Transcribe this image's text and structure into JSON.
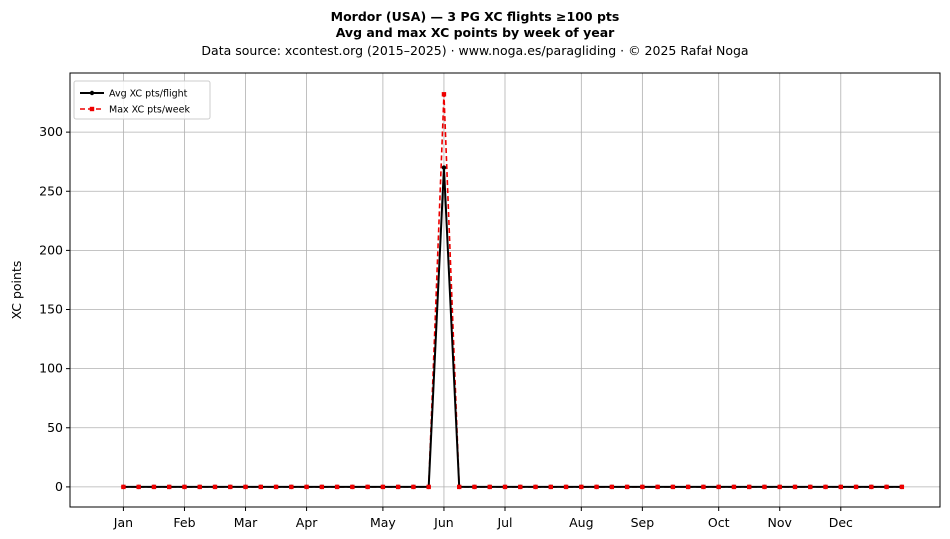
{
  "chart_data": {
    "type": "line",
    "title": "Mordor (USA)  —  3 PG XC flights ≥100 pts",
    "subtitle": "Avg and max XC points by week of year",
    "source_note": "Data source: xcontest.org (2015–2025)  ·  www.noga.es/paragliding  ·  © 2025 Rafał Noga",
    "xlabel": "",
    "ylabel": "XC points",
    "xlim": [
      -2.5,
      54.5
    ],
    "ylim": [
      -17,
      350
    ],
    "yticks": [
      0,
      50,
      100,
      150,
      200,
      250,
      300
    ],
    "month_ticks": [
      {
        "label": "Jan",
        "week": 1
      },
      {
        "label": "Feb",
        "week": 5
      },
      {
        "label": "Mar",
        "week": 9
      },
      {
        "label": "Apr",
        "week": 13
      },
      {
        "label": "May",
        "week": 18
      },
      {
        "label": "Jun",
        "week": 22
      },
      {
        "label": "Jul",
        "week": 26
      },
      {
        "label": "Aug",
        "week": 31
      },
      {
        "label": "Sep",
        "week": 35
      },
      {
        "label": "Oct",
        "week": 40
      },
      {
        "label": "Nov",
        "week": 44
      },
      {
        "label": "Dec",
        "week": 48
      }
    ],
    "grid": true,
    "legend_position": "top-left",
    "x": [
      1,
      2,
      3,
      4,
      5,
      6,
      7,
      8,
      9,
      10,
      11,
      12,
      13,
      14,
      15,
      16,
      17,
      18,
      19,
      20,
      21,
      22,
      23,
      24,
      25,
      26,
      27,
      28,
      29,
      30,
      31,
      32,
      33,
      34,
      35,
      36,
      37,
      38,
      39,
      40,
      41,
      42,
      43,
      44,
      45,
      46,
      47,
      48,
      49,
      50,
      51,
      52
    ],
    "series": [
      {
        "name": "Avg XC pts/flight",
        "color": "#000000",
        "values": [
          0,
          0,
          0,
          0,
          0,
          0,
          0,
          0,
          0,
          0,
          0,
          0,
          0,
          0,
          0,
          0,
          0,
          0,
          0,
          0,
          0,
          270,
          0,
          0,
          0,
          0,
          0,
          0,
          0,
          0,
          0,
          0,
          0,
          0,
          0,
          0,
          0,
          0,
          0,
          0,
          0,
          0,
          0,
          0,
          0,
          0,
          0,
          0,
          0,
          0,
          0,
          0
        ]
      },
      {
        "name": "Max XC pts/week",
        "color": "#ee0000",
        "values": [
          0,
          0,
          0,
          0,
          0,
          0,
          0,
          0,
          0,
          0,
          0,
          0,
          0,
          0,
          0,
          0,
          0,
          0,
          0,
          0,
          0,
          332,
          0,
          0,
          0,
          0,
          0,
          0,
          0,
          0,
          0,
          0,
          0,
          0,
          0,
          0,
          0,
          0,
          0,
          0,
          0,
          0,
          0,
          0,
          0,
          0,
          0,
          0,
          0,
          0,
          0,
          0
        ]
      }
    ]
  }
}
